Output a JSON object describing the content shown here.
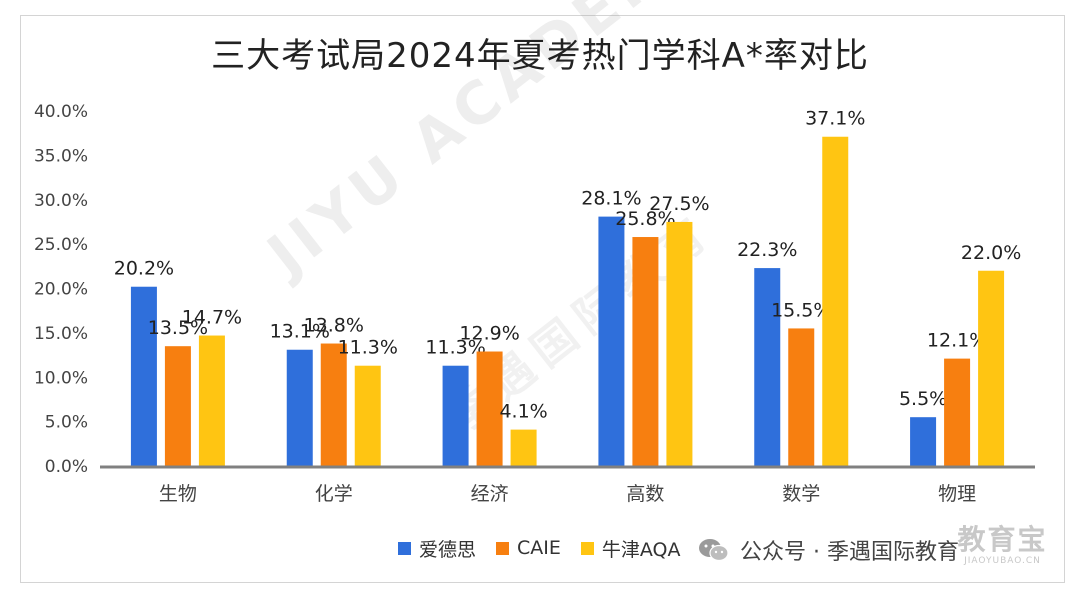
{
  "chart_data": {
    "type": "bar",
    "title": "三大考试局2024年夏考热门学科A*率对比",
    "categories": [
      "生物",
      "化学",
      "经济",
      "高数",
      "数学",
      "物理"
    ],
    "series": [
      {
        "name": "爱德思",
        "color": "#2F6FDB",
        "values": [
          20.2,
          13.1,
          11.3,
          28.1,
          22.3,
          5.5
        ]
      },
      {
        "name": "CAIE",
        "color": "#F77F10",
        "values": [
          13.5,
          13.8,
          12.9,
          25.8,
          15.5,
          12.1
        ]
      },
      {
        "name": "牛津AQA",
        "color": "#FFC512",
        "values": [
          14.7,
          11.3,
          4.1,
          27.5,
          37.1,
          22.0
        ]
      }
    ],
    "ylim": [
      0,
      40
    ],
    "yticks": [
      0,
      5,
      10,
      15,
      20,
      25,
      30,
      35,
      40
    ],
    "ytick_labels": [
      "0.0%",
      "5.0%",
      "10.0%",
      "15.0%",
      "20.0%",
      "25.0%",
      "30.0%",
      "35.0%",
      "40.0%"
    ],
    "data_labels": [
      [
        "20.2%",
        "13.1%",
        "11.3%",
        "28.1%",
        "22.3%",
        "5.5%"
      ],
      [
        "13.5%",
        "13.8%",
        "12.9%",
        "25.8%",
        "15.5%",
        "12.1%"
      ],
      [
        "14.7%",
        "11.3%",
        "4.1%",
        "27.5%",
        "37.1%",
        "22.0%"
      ]
    ],
    "grid": false,
    "legend_position": "bottom"
  },
  "watermark": {
    "diagonal_text": "JIYU ACADEMY",
    "diagonal_text_cn": "季遇国际教育",
    "account_label": "公众号 · 季遇国际教育",
    "corner_big": "教育宝",
    "corner_small": "JIAOYUBAO.CN"
  }
}
